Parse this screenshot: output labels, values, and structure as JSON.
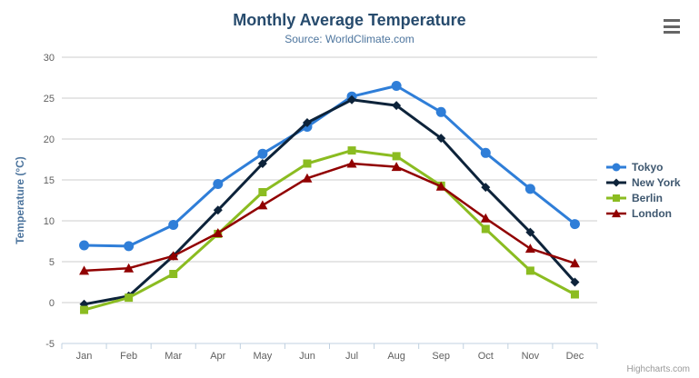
{
  "header": {
    "title": "Monthly Average Temperature",
    "subtitle": "Source: WorldClimate.com"
  },
  "toolbar": {
    "menu_icon": "hamburger-menu-icon"
  },
  "credits": {
    "label": "Highcharts.com"
  },
  "colors": {
    "title": "#274b6d",
    "subtitle": "#4d759e",
    "axis_title": "#4d759e",
    "tick_label": "#606060",
    "grid": "#cccccc",
    "axis_line": "#c0d0e0",
    "legend_text": "#3e576f",
    "credits": "#999999",
    "menu": "#666666"
  },
  "chart_data": {
    "type": "line",
    "title": "Monthly Average Temperature",
    "subtitle": "Source: WorldClimate.com",
    "categories": [
      "Jan",
      "Feb",
      "Mar",
      "Apr",
      "May",
      "Jun",
      "Jul",
      "Aug",
      "Sep",
      "Oct",
      "Nov",
      "Dec"
    ],
    "series": [
      {
        "name": "Tokyo",
        "color": "#2f7ed8",
        "marker": "circle",
        "values": [
          7.0,
          6.9,
          9.5,
          14.5,
          18.2,
          21.5,
          25.2,
          26.5,
          23.3,
          18.3,
          13.9,
          9.6
        ]
      },
      {
        "name": "New York",
        "color": "#0d233a",
        "marker": "diamond",
        "values": [
          -0.2,
          0.8,
          5.7,
          11.3,
          17.0,
          22.0,
          24.8,
          24.1,
          20.1,
          14.1,
          8.6,
          2.5
        ]
      },
      {
        "name": "Berlin",
        "color": "#8bbc21",
        "marker": "square",
        "values": [
          -0.9,
          0.6,
          3.5,
          8.4,
          13.5,
          17.0,
          18.6,
          17.9,
          14.3,
          9.0,
          3.9,
          1.0
        ]
      },
      {
        "name": "London",
        "color": "#910000",
        "marker": "triangle",
        "values": [
          3.9,
          4.2,
          5.7,
          8.5,
          11.9,
          15.2,
          17.0,
          16.6,
          14.2,
          10.3,
          6.6,
          4.8
        ]
      }
    ],
    "xlabel": "",
    "ylabel": "Temperature (°C)",
    "ylim": [
      -5,
      30
    ],
    "yticks": [
      30,
      25,
      20,
      15,
      10,
      5,
      0,
      -5
    ],
    "grid": true,
    "legend_position": "right"
  }
}
